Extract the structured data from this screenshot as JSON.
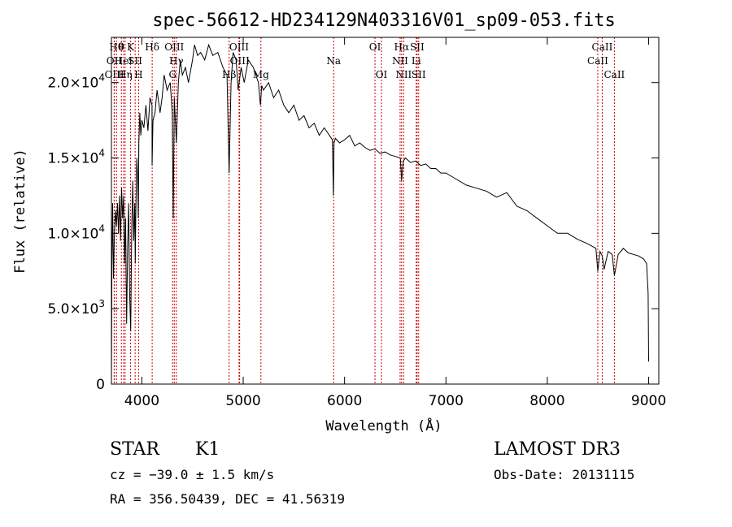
{
  "chart_data": {
    "type": "line",
    "title": "spec-56612-HD234129N403316V01_sp09-053.fits",
    "xlabel": "Wavelength (Å)",
    "ylabel": "Flux (relative)",
    "xlim": [
      3700,
      9100
    ],
    "ylim": [
      0,
      23000
    ],
    "xticks": [
      {
        "value": 4000,
        "label": "4000"
      },
      {
        "value": 5000,
        "label": "5000"
      },
      {
        "value": 6000,
        "label": "6000"
      },
      {
        "value": 7000,
        "label": "7000"
      },
      {
        "value": 8000,
        "label": "8000"
      },
      {
        "value": 9000,
        "label": "9000"
      }
    ],
    "yticks": [
      {
        "value": 0,
        "mant": "0",
        "exp": ""
      },
      {
        "value": 5000,
        "mant": "5.0×10",
        "exp": "3"
      },
      {
        "value": 10000,
        "mant": "1.0×10",
        "exp": "4"
      },
      {
        "value": 15000,
        "mant": "1.5×10",
        "exp": "4"
      },
      {
        "value": 20000,
        "mant": "2.0×10",
        "exp": "4"
      }
    ],
    "series": [
      {
        "name": "flux",
        "color": "#000000",
        "x": [
          3700,
          3705,
          3712,
          3720,
          3730,
          3740,
          3750,
          3760,
          3770,
          3780,
          3790,
          3800,
          3810,
          3820,
          3830,
          3840,
          3850,
          3860,
          3870,
          3880,
          3890,
          3900,
          3910,
          3920,
          3930,
          3935,
          3940,
          3950,
          3960,
          3965,
          3970,
          3980,
          3990,
          4000,
          4020,
          4040,
          4060,
          4080,
          4100,
          4101,
          4110,
          4130,
          4150,
          4180,
          4200,
          4220,
          4250,
          4280,
          4300,
          4310,
          4320,
          4340,
          4360,
          4380,
          4400,
          4430,
          4460,
          4500,
          4520,
          4550,
          4580,
          4620,
          4660,
          4700,
          4750,
          4800,
          4840,
          4861,
          4880,
          4900,
          4930,
          4950,
          4980,
          5010,
          5050,
          5100,
          5150,
          5170,
          5183,
          5200,
          5250,
          5300,
          5350,
          5400,
          5450,
          5500,
          5550,
          5600,
          5650,
          5700,
          5750,
          5800,
          5850,
          5880,
          5890,
          5896,
          5910,
          5950,
          6000,
          6050,
          6100,
          6150,
          6200,
          6250,
          6300,
          6350,
          6400,
          6450,
          6500,
          6550,
          6563,
          6580,
          6600,
          6650,
          6700,
          6750,
          6800,
          6850,
          6900,
          6950,
          7000,
          7100,
          7200,
          7300,
          7400,
          7500,
          7600,
          7700,
          7800,
          7900,
          8000,
          8100,
          8200,
          8300,
          8400,
          8480,
          8498,
          8520,
          8542,
          8560,
          8600,
          8640,
          8662,
          8700,
          8750,
          8800,
          8850,
          8900,
          8950,
          8980,
          8995,
          9000
        ],
        "y": [
          0,
          8000,
          12000,
          7000,
          10000,
          11500,
          10500,
          12000,
          10000,
          12500,
          9500,
          13000,
          11000,
          12500,
          8000,
          11000,
          4000,
          9000,
          12000,
          6000,
          3500,
          10000,
          13500,
          9500,
          12000,
          8000,
          11000,
          15000,
          13500,
          11000,
          16000,
          18000,
          16500,
          17500,
          17000,
          18500,
          16800,
          19000,
          18500,
          14500,
          17500,
          18000,
          19500,
          18000,
          19000,
          20500,
          19500,
          20000,
          18000,
          11000,
          19000,
          16000,
          20000,
          21500,
          20500,
          21000,
          20000,
          21500,
          22500,
          21800,
          22000,
          21500,
          22500,
          21800,
          22000,
          21000,
          20500,
          14000,
          20000,
          22000,
          21500,
          19500,
          21000,
          20000,
          21500,
          21000,
          20000,
          18500,
          19800,
          19500,
          20000,
          19000,
          19500,
          18500,
          18000,
          18500,
          17500,
          17800,
          17000,
          17300,
          16500,
          17000,
          16500,
          16200,
          12500,
          16000,
          16300,
          16000,
          16200,
          16500,
          15800,
          16000,
          15700,
          15500,
          15600,
          15300,
          15400,
          15200,
          15100,
          15000,
          13500,
          14800,
          15000,
          14700,
          14800,
          14500,
          14600,
          14300,
          14300,
          14000,
          14000,
          13600,
          13200,
          13000,
          12800,
          12400,
          12700,
          11800,
          11500,
          11000,
          10500,
          10000,
          10000,
          9600,
          9300,
          9000,
          7500,
          8800,
          8500,
          7600,
          8800,
          8600,
          7200,
          8600,
          9000,
          8700,
          8600,
          8500,
          8300,
          8000,
          6000,
          1500
        ]
      }
    ],
    "line_markers": [
      {
        "wl": 3750,
        "label": "Hθ",
        "row": 1
      },
      {
        "wl": 3727,
        "label": "OII",
        "row": 2
      },
      {
        "wl": 3729,
        "label": "OIII",
        "row": 3
      },
      {
        "wl": 3798,
        "label": "θ",
        "row": 1
      },
      {
        "wl": 3820,
        "label": "HeI",
        "row": 2
      },
      {
        "wl": 3835,
        "label": "Hη",
        "row": 3
      },
      {
        "wl": 3889,
        "label": "K",
        "row": 1
      },
      {
        "wl": 3934,
        "label": "SII",
        "row": 2
      },
      {
        "wl": 3968,
        "label": "H",
        "row": 3
      },
      {
        "wl": 4102,
        "label": "Hδ",
        "row": 1
      },
      {
        "wl": 4320,
        "label": "OIII",
        "row": 1
      },
      {
        "wl": 4340,
        "label": "Hγ",
        "row": 2
      },
      {
        "wl": 4304,
        "label": "G",
        "row": 3
      },
      {
        "wl": 4861,
        "label": "Hβ",
        "row": 3
      },
      {
        "wl": 4959,
        "label": "OIII",
        "row": 1
      },
      {
        "wl": 4965,
        "label": "OIII",
        "row": 2
      },
      {
        "wl": 5175,
        "label": "Mg",
        "row": 3
      },
      {
        "wl": 5892,
        "label": "Na",
        "row": 2
      },
      {
        "wl": 6300,
        "label": "OI",
        "row": 1
      },
      {
        "wl": 6364,
        "label": "OI",
        "row": 3
      },
      {
        "wl": 6563,
        "label": "Hα",
        "row": 1
      },
      {
        "wl": 6548,
        "label": "NII",
        "row": 2
      },
      {
        "wl": 6583,
        "label": "NII",
        "row": 3
      },
      {
        "wl": 6707,
        "label": "Li",
        "row": 2
      },
      {
        "wl": 6716,
        "label": "SII",
        "row": 1
      },
      {
        "wl": 6731,
        "label": "SII",
        "row": 3
      },
      {
        "wl": 8498,
        "label": "CaII",
        "row": 2
      },
      {
        "wl": 8542,
        "label": "CaII",
        "row": 1
      },
      {
        "wl": 8662,
        "label": "CaII",
        "row": 3
      }
    ],
    "marker_color": "#cc0000"
  },
  "info": {
    "class": "STAR",
    "subclass": "K1",
    "cz": "cz = −39.0 ± 1.5 km/s",
    "radec": "RA = 356.50439, DEC =  41.56319",
    "survey": "LAMOST DR3",
    "obsdate": "Obs-Date: 20131115"
  }
}
